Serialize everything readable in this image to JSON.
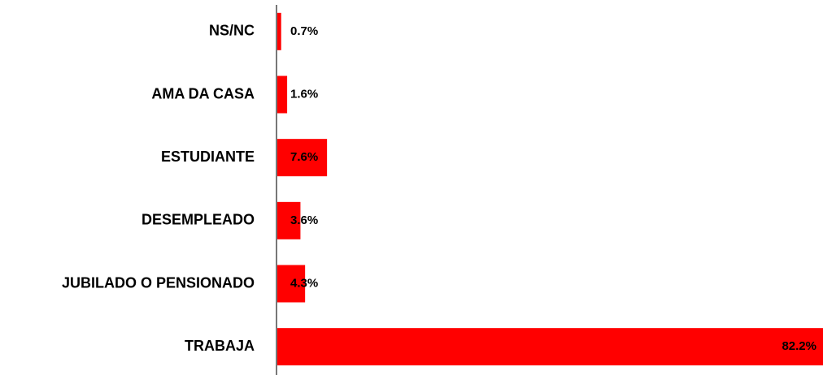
{
  "chart_data": {
    "type": "hbar",
    "categories": [
      "NS/NC",
      "AMA DA CASA",
      "ESTUDIANTE",
      "DESEMPLEADO",
      "JUBILADO O PENSIONADO",
      "TRABAJA"
    ],
    "values": [
      0.7,
      1.6,
      7.6,
      3.6,
      4.3,
      82.2
    ],
    "value_labels": [
      "0.7%",
      "1.6%",
      "7.6%",
      "3.6%",
      "4.3%",
      "82.2%"
    ],
    "color": "#ff0000",
    "xlim": [
      0,
      82.2
    ]
  }
}
